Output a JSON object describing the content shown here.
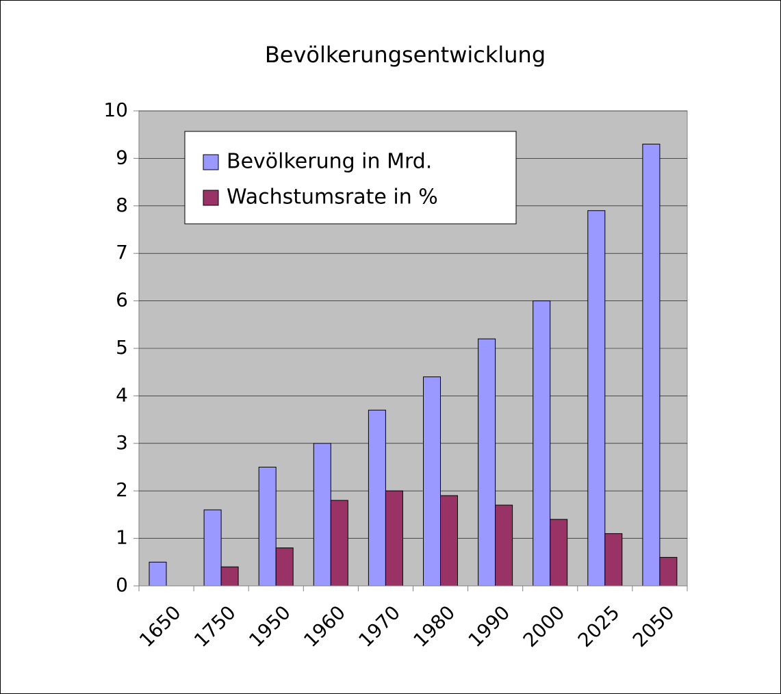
{
  "chart_data": {
    "type": "bar",
    "title": "Bevölkerungsentwicklung",
    "categories": [
      "1650",
      "1750",
      "1950",
      "1960",
      "1970",
      "1980",
      "1990",
      "2000",
      "2025",
      "2050"
    ],
    "series": [
      {
        "name": "Bevölkerung in Mrd.",
        "color": "#9999ff",
        "values": [
          0.5,
          1.6,
          2.5,
          3.0,
          3.7,
          4.4,
          5.2,
          6.0,
          7.9,
          9.3
        ]
      },
      {
        "name": "Wachstumsrate in %",
        "color": "#993366",
        "values": [
          null,
          0.4,
          0.8,
          1.8,
          2.0,
          1.9,
          1.7,
          1.4,
          1.1,
          0.6
        ]
      }
    ],
    "ylim": [
      0,
      10
    ],
    "yticks": [
      0,
      1,
      2,
      3,
      4,
      5,
      6,
      7,
      8,
      9,
      10
    ],
    "grid": true,
    "legend": "top-left"
  }
}
